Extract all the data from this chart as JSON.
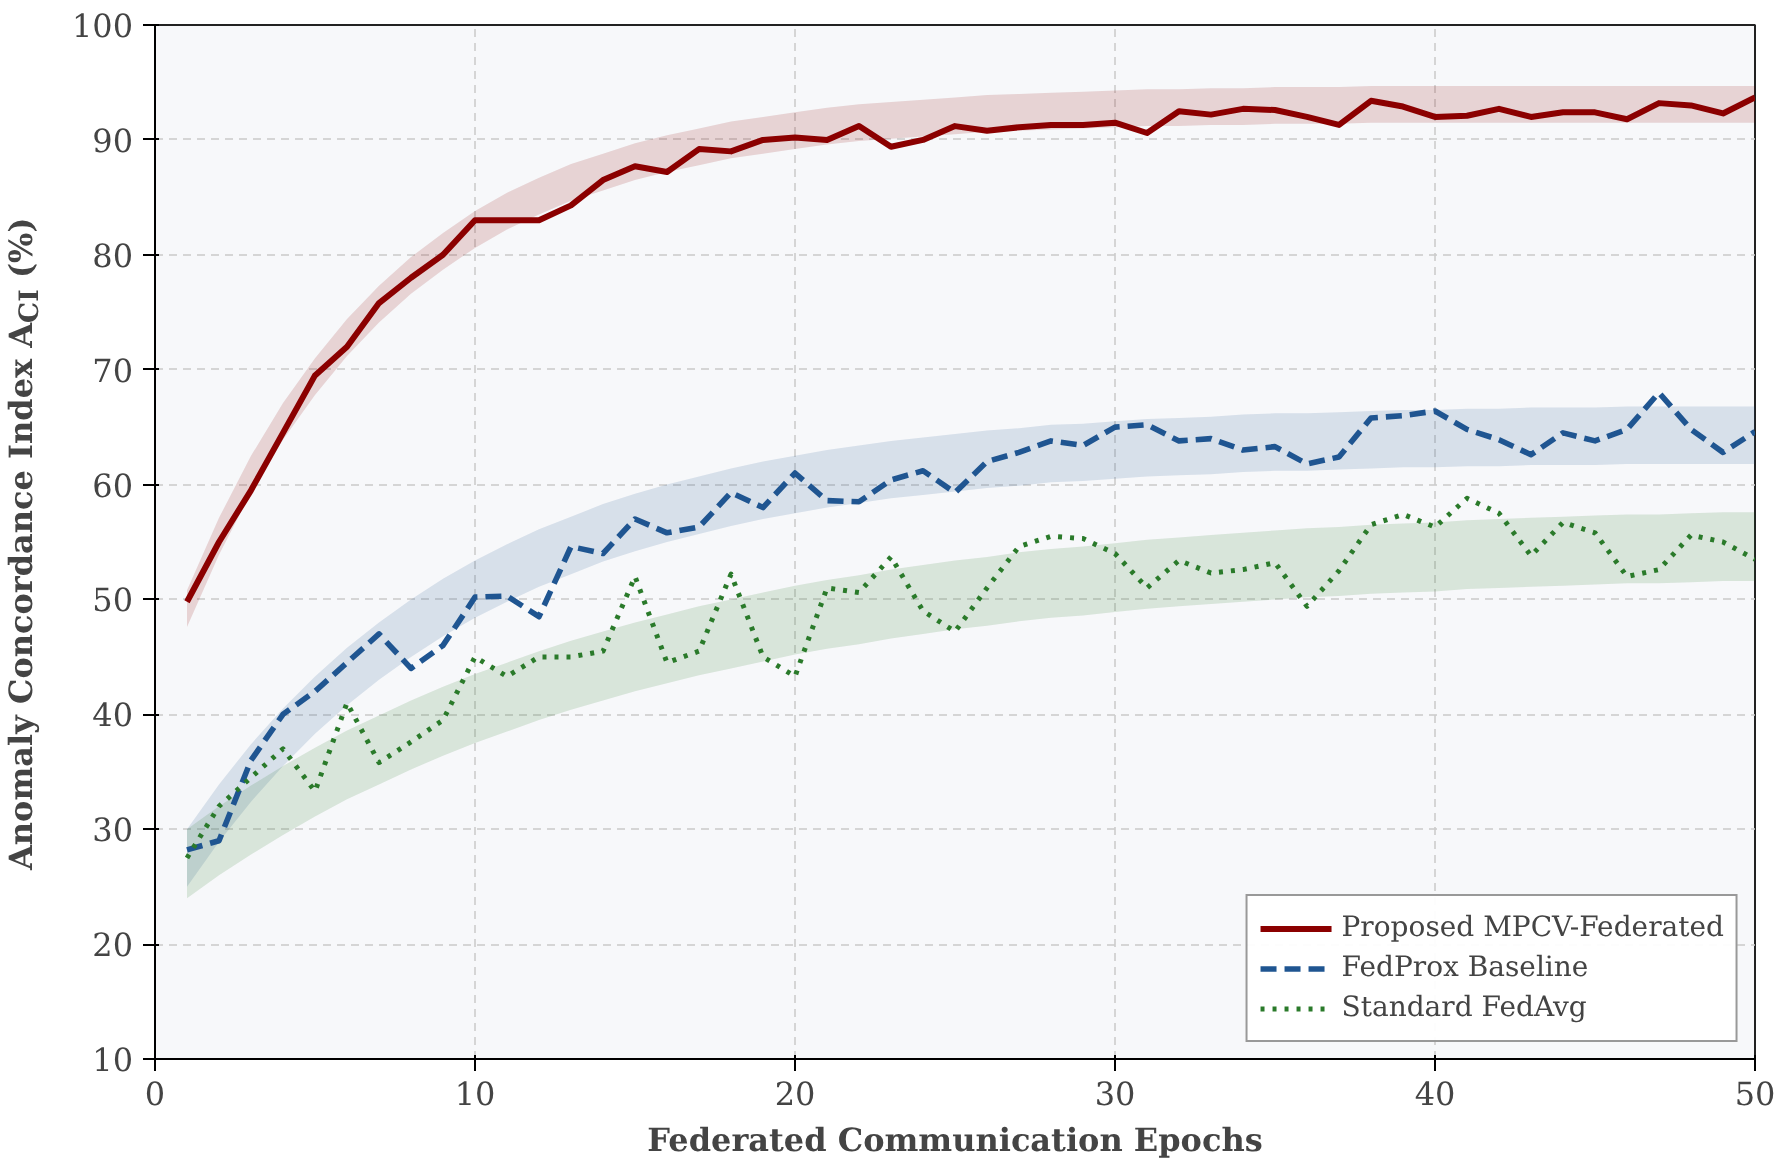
{
  "chart_data": {
    "type": "line",
    "xlabel": "Federated Communication Epochs",
    "ylabel": "Anomaly Concordance Index A$_{CI}$ (%)",
    "x": [
      1,
      2,
      3,
      4,
      5,
      6,
      7,
      8,
      9,
      10,
      11,
      12,
      13,
      14,
      15,
      16,
      17,
      18,
      19,
      20,
      21,
      22,
      23,
      24,
      25,
      26,
      27,
      28,
      29,
      30,
      31,
      32,
      33,
      34,
      35,
      36,
      37,
      38,
      39,
      40,
      41,
      42,
      43,
      44,
      45,
      46,
      47,
      48,
      49,
      50
    ],
    "xlim": [
      0,
      50
    ],
    "xticks": [
      0,
      10,
      20,
      30,
      40,
      50
    ],
    "ylim": [
      10,
      100
    ],
    "yticks": [
      10,
      20,
      30,
      40,
      50,
      60,
      70,
      80,
      90,
      100
    ],
    "grid": true,
    "legend": "bottom right",
    "series": [
      {
        "name": "Proposed MPCV-Federated",
        "color": "#8b0000",
        "line_style": "solid",
        "values": [
          49.8,
          55,
          59.5,
          64.5,
          69.5,
          72,
          75.8,
          78,
          80,
          83,
          83,
          83,
          84.3,
          86.5,
          87.7,
          87.2,
          89.2,
          89,
          90,
          90.2,
          90,
          91.2,
          89.4,
          90,
          91.2,
          90.8,
          91.1,
          91.3,
          91.3,
          91.5,
          90.6,
          92.5,
          92.2,
          92.7,
          92.6,
          92,
          91.3,
          93.4,
          92.9,
          92,
          92.1,
          92.7,
          92,
          92.4,
          92.4,
          91.8,
          93.2,
          93,
          92.3,
          93.7
        ],
        "lower": [
          47.6,
          53.9,
          59.3,
          63.9,
          67.8,
          71.2,
          74.1,
          76.6,
          78.7,
          80.6,
          82.2,
          83.5,
          84.7,
          85.6,
          86.5,
          87.2,
          87.8,
          88.4,
          88.8,
          89.2,
          89.6,
          89.9,
          90.1,
          90.3,
          90.5,
          90.7,
          90.8,
          90.9,
          91.0,
          91.1,
          91.2,
          91.2,
          91.3,
          91.3,
          91.4,
          91.4,
          91.4,
          91.5,
          91.5,
          91.5,
          91.5,
          91.5,
          91.5,
          91.5,
          91.5,
          91.5,
          91.5,
          91.5,
          91.5,
          91.5
        ],
        "upper": [
          50.8,
          57.1,
          62.5,
          67.1,
          71.0,
          74.4,
          77.3,
          79.8,
          81.9,
          83.8,
          85.4,
          86.7,
          87.9,
          88.8,
          89.7,
          90.4,
          91.0,
          91.6,
          92.0,
          92.4,
          92.8,
          93.1,
          93.3,
          93.5,
          93.7,
          93.9,
          94.0,
          94.1,
          94.2,
          94.3,
          94.4,
          94.4,
          94.5,
          94.5,
          94.6,
          94.6,
          94.6,
          94.7,
          94.7,
          94.7,
          94.7,
          94.7,
          94.7,
          94.7,
          94.7,
          94.7,
          94.7,
          94.7,
          94.7,
          94.7
        ]
      },
      {
        "name": "FedProx Baseline",
        "color": "#1f5591",
        "line_style": "dashed",
        "values": [
          28.2,
          29,
          36,
          40,
          42,
          44.5,
          47,
          44,
          46,
          50.2,
          50.3,
          48.5,
          54.6,
          54,
          57,
          55.8,
          56.3,
          59.3,
          58,
          61,
          58.6,
          58.5,
          60.4,
          61.2,
          59.3,
          62,
          62.8,
          63.8,
          63.4,
          65,
          65.2,
          63.8,
          64,
          63,
          63.3,
          61.8,
          62.4,
          65.8,
          66,
          66.4,
          64.8,
          63.9,
          62.6,
          64.5,
          63.8,
          64.8,
          68,
          64.8,
          62.8,
          64.6
        ],
        "lower": [
          25.0,
          28.9,
          32.4,
          35.5,
          38.3,
          40.8,
          43.0,
          45.0,
          46.8,
          48.4,
          49.8,
          51.1,
          52.2,
          53.3,
          54.2,
          55.0,
          55.7,
          56.4,
          57.0,
          57.5,
          58.0,
          58.4,
          58.8,
          59.1,
          59.4,
          59.7,
          59.9,
          60.2,
          60.3,
          60.5,
          60.7,
          60.8,
          60.9,
          61.1,
          61.2,
          61.2,
          61.3,
          61.4,
          61.5,
          61.5,
          61.6,
          61.6,
          61.7,
          61.7,
          61.7,
          61.8,
          61.8,
          61.8,
          61.8,
          61.8
        ],
        "upper": [
          30.0,
          33.9,
          37.4,
          40.5,
          43.3,
          45.8,
          48.0,
          50.0,
          51.8,
          53.4,
          54.8,
          56.1,
          57.2,
          58.3,
          59.2,
          60.0,
          60.7,
          61.4,
          62.0,
          62.5,
          63.0,
          63.4,
          63.8,
          64.1,
          64.4,
          64.7,
          64.9,
          65.2,
          65.3,
          65.5,
          65.7,
          65.8,
          65.9,
          66.1,
          66.2,
          66.2,
          66.3,
          66.4,
          66.5,
          66.5,
          66.6,
          66.6,
          66.7,
          66.7,
          66.7,
          66.8,
          66.8,
          66.8,
          66.8,
          66.8
        ]
      },
      {
        "name": "Standard FedAvg",
        "color": "#2a7a2a",
        "line_style": "dotted",
        "values": [
          27.5,
          32,
          34.5,
          37,
          33.3,
          41,
          35.8,
          37.6,
          39.5,
          45,
          43.3,
          45,
          45,
          45.5,
          52,
          44.5,
          45.5,
          52.2,
          45,
          43.3,
          51,
          50.6,
          53.7,
          49,
          47.2,
          51,
          54.6,
          55.5,
          55.3,
          54,
          51,
          53.4,
          52.3,
          52.6,
          53.2,
          49.4,
          52.5,
          56.5,
          57.4,
          56.3,
          58.8,
          57.5,
          53.8,
          56.7,
          55.8,
          52,
          52.6,
          55.6,
          55,
          53.5
        ],
        "lower": [
          24.0,
          26.0,
          27.8,
          29.5,
          31.1,
          32.6,
          33.9,
          35.2,
          36.4,
          37.5,
          38.5,
          39.5,
          40.4,
          41.2,
          42.0,
          42.7,
          43.4,
          44.0,
          44.6,
          45.2,
          45.7,
          46.1,
          46.6,
          47.0,
          47.4,
          47.7,
          48.1,
          48.4,
          48.6,
          48.9,
          49.2,
          49.4,
          49.6,
          49.8,
          50.0,
          50.2,
          50.3,
          50.5,
          50.6,
          50.7,
          50.9,
          51.0,
          51.1,
          51.2,
          51.3,
          51.4,
          51.4,
          51.5,
          51.6,
          51.6
        ],
        "upper": [
          30.0,
          32.0,
          33.8,
          35.5,
          37.1,
          38.6,
          39.9,
          41.2,
          42.4,
          43.5,
          44.5,
          45.5,
          46.4,
          47.2,
          48.0,
          48.7,
          49.4,
          50.0,
          50.6,
          51.2,
          51.7,
          52.1,
          52.6,
          53.0,
          53.4,
          53.7,
          54.1,
          54.4,
          54.6,
          54.9,
          55.2,
          55.4,
          55.6,
          55.8,
          56.0,
          56.2,
          56.3,
          56.5,
          56.6,
          56.7,
          56.9,
          57.0,
          57.1,
          57.2,
          57.3,
          57.4,
          57.4,
          57.5,
          57.6,
          57.6
        ]
      }
    ]
  }
}
